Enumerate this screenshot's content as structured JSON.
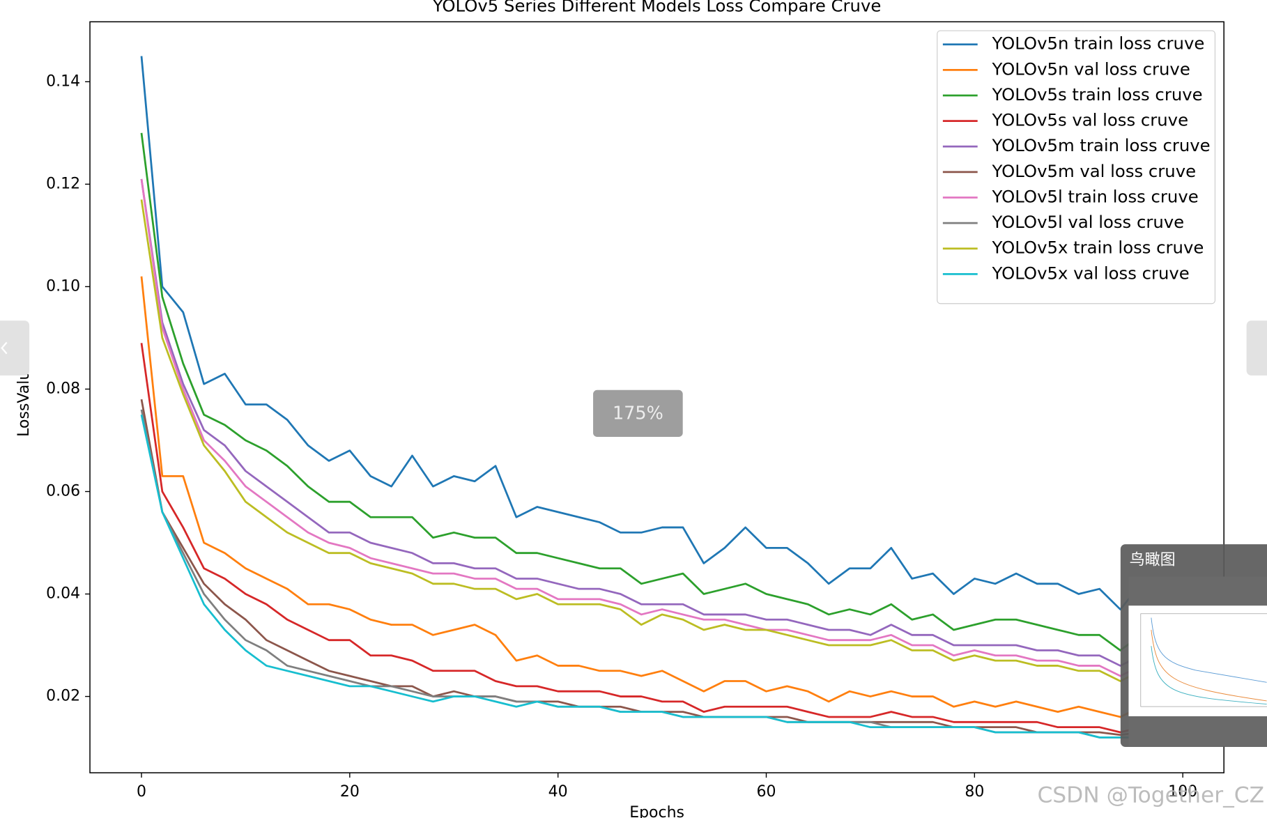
{
  "chart_data": {
    "type": "line",
    "title": "YOLOv5 Series Different Models Loss Compare Cruve",
    "xlabel": "Epochs",
    "ylabel": "LossValue",
    "x": [
      0,
      2,
      4,
      6,
      8,
      10,
      12,
      14,
      16,
      18,
      20,
      22,
      24,
      26,
      28,
      30,
      32,
      34,
      36,
      38,
      40,
      42,
      44,
      46,
      48,
      50,
      52,
      54,
      56,
      58,
      60,
      62,
      64,
      66,
      68,
      70,
      72,
      74,
      76,
      78,
      80,
      82,
      84,
      86,
      88,
      90,
      92,
      94,
      96,
      98,
      99
    ],
    "xlim": [
      -4.95,
      103.95
    ],
    "xticks": [
      0,
      20,
      40,
      60,
      80,
      100
    ],
    "ylim": [
      0.0051,
      0.1517
    ],
    "yticks": [
      0.02,
      0.04,
      0.06,
      0.08,
      {
        "value": 0.1,
        "label": "0.10"
      },
      0.12,
      0.14
    ],
    "legend": "upper right",
    "grid": false,
    "series": [
      {
        "name": "YOLOv5n train loss cruve",
        "color": "#1f77b4",
        "values": [
          0.145,
          0.1,
          0.095,
          0.081,
          0.083,
          0.077,
          0.077,
          0.074,
          0.069,
          0.066,
          0.068,
          0.063,
          0.061,
          0.067,
          0.061,
          0.063,
          0.062,
          0.065,
          0.055,
          0.057,
          0.056,
          0.055,
          0.054,
          0.052,
          0.052,
          0.053,
          0.053,
          0.046,
          0.049,
          0.053,
          0.049,
          0.049,
          0.046,
          0.042,
          0.045,
          0.045,
          0.049,
          0.043,
          0.044,
          0.04,
          0.043,
          0.042,
          0.044,
          0.042,
          0.042,
          0.04,
          0.041,
          0.037,
          0.042,
          0.039,
          0.039
        ]
      },
      {
        "name": "YOLOv5n val loss cruve",
        "color": "#ff7f0e",
        "values": [
          0.102,
          0.063,
          0.063,
          0.05,
          0.048,
          0.045,
          0.043,
          0.041,
          0.038,
          0.038,
          0.037,
          0.035,
          0.034,
          0.034,
          0.032,
          0.033,
          0.034,
          0.032,
          0.027,
          0.028,
          0.026,
          0.026,
          0.025,
          0.025,
          0.024,
          0.025,
          0.023,
          0.021,
          0.023,
          0.023,
          0.021,
          0.022,
          0.021,
          0.019,
          0.021,
          0.02,
          0.021,
          0.02,
          0.02,
          0.018,
          0.019,
          0.018,
          0.019,
          0.018,
          0.017,
          0.018,
          0.017,
          0.016,
          0.018,
          0.017,
          0.017
        ]
      },
      {
        "name": "YOLOv5s train loss cruve",
        "color": "#2ca02c",
        "values": [
          0.13,
          0.098,
          0.085,
          0.075,
          0.073,
          0.07,
          0.068,
          0.065,
          0.061,
          0.058,
          0.058,
          0.055,
          0.055,
          0.055,
          0.051,
          0.052,
          0.051,
          0.051,
          0.048,
          0.048,
          0.047,
          0.046,
          0.045,
          0.045,
          0.042,
          0.043,
          0.044,
          0.04,
          0.041,
          0.042,
          0.04,
          0.039,
          0.038,
          0.036,
          0.037,
          0.036,
          0.038,
          0.035,
          0.036,
          0.033,
          0.034,
          0.035,
          0.035,
          0.034,
          0.033,
          0.032,
          0.032,
          0.029,
          0.032,
          0.031,
          0.031
        ]
      },
      {
        "name": "YOLOv5s val loss cruve",
        "color": "#d62728",
        "values": [
          0.089,
          0.06,
          0.053,
          0.045,
          0.043,
          0.04,
          0.038,
          0.035,
          0.033,
          0.031,
          0.031,
          0.028,
          0.028,
          0.027,
          0.025,
          0.025,
          0.025,
          0.023,
          0.022,
          0.022,
          0.021,
          0.021,
          0.021,
          0.02,
          0.02,
          0.019,
          0.019,
          0.017,
          0.018,
          0.018,
          0.018,
          0.018,
          0.017,
          0.016,
          0.016,
          0.016,
          0.017,
          0.016,
          0.016,
          0.015,
          0.015,
          0.015,
          0.015,
          0.015,
          0.014,
          0.014,
          0.014,
          0.013,
          0.014,
          0.0135,
          0.0135
        ]
      },
      {
        "name": "YOLOv5m train loss cruve",
        "color": "#9467bd",
        "values": [
          0.121,
          0.093,
          0.081,
          0.072,
          0.069,
          0.064,
          0.061,
          0.058,
          0.055,
          0.052,
          0.052,
          0.05,
          0.049,
          0.048,
          0.046,
          0.046,
          0.045,
          0.045,
          0.043,
          0.043,
          0.042,
          0.041,
          0.041,
          0.04,
          0.038,
          0.038,
          0.038,
          0.036,
          0.036,
          0.036,
          0.035,
          0.035,
          0.034,
          0.033,
          0.033,
          0.032,
          0.034,
          0.032,
          0.032,
          0.03,
          0.03,
          0.03,
          0.03,
          0.029,
          0.029,
          0.028,
          0.028,
          0.026,
          0.028,
          0.027,
          0.027
        ]
      },
      {
        "name": "YOLOv5m val loss cruve",
        "color": "#8c564b",
        "values": [
          0.078,
          0.056,
          0.049,
          0.042,
          0.038,
          0.035,
          0.031,
          0.029,
          0.027,
          0.025,
          0.024,
          0.023,
          0.022,
          0.022,
          0.02,
          0.021,
          0.02,
          0.02,
          0.019,
          0.019,
          0.019,
          0.018,
          0.018,
          0.018,
          0.017,
          0.017,
          0.017,
          0.016,
          0.016,
          0.016,
          0.016,
          0.016,
          0.015,
          0.015,
          0.015,
          0.015,
          0.015,
          0.015,
          0.015,
          0.014,
          0.014,
          0.014,
          0.014,
          0.013,
          0.013,
          0.013,
          0.013,
          0.0125,
          0.013,
          0.0125,
          0.0125
        ]
      },
      {
        "name": "YOLOv5l train loss cruve",
        "color": "#e377c2",
        "values": [
          0.121,
          0.092,
          0.08,
          0.07,
          0.066,
          0.061,
          0.058,
          0.055,
          0.052,
          0.05,
          0.049,
          0.047,
          0.046,
          0.045,
          0.044,
          0.044,
          0.043,
          0.043,
          0.041,
          0.041,
          0.039,
          0.039,
          0.039,
          0.038,
          0.036,
          0.037,
          0.036,
          0.035,
          0.035,
          0.034,
          0.033,
          0.033,
          0.032,
          0.031,
          0.031,
          0.031,
          0.032,
          0.03,
          0.03,
          0.028,
          0.029,
          0.028,
          0.028,
          0.027,
          0.027,
          0.026,
          0.026,
          0.024,
          0.026,
          0.025,
          0.025
        ]
      },
      {
        "name": "YOLOv5l val loss cruve",
        "color": "#7f7f7f",
        "values": [
          0.076,
          0.056,
          0.048,
          0.04,
          0.035,
          0.031,
          0.029,
          0.026,
          0.025,
          0.024,
          0.023,
          0.022,
          0.022,
          0.021,
          0.02,
          0.02,
          0.02,
          0.02,
          0.019,
          0.019,
          0.018,
          0.018,
          0.018,
          0.017,
          0.017,
          0.017,
          0.016,
          0.016,
          0.016,
          0.016,
          0.016,
          0.015,
          0.015,
          0.015,
          0.015,
          0.015,
          0.014,
          0.014,
          0.014,
          0.014,
          0.014,
          0.013,
          0.013,
          0.013,
          0.013,
          0.013,
          0.012,
          0.012,
          0.012,
          0.012,
          0.012
        ]
      },
      {
        "name": "YOLOv5x train loss cruve",
        "color": "#bcbd22",
        "values": [
          0.117,
          0.09,
          0.079,
          0.069,
          0.064,
          0.058,
          0.055,
          0.052,
          0.05,
          0.048,
          0.048,
          0.046,
          0.045,
          0.044,
          0.042,
          0.042,
          0.041,
          0.041,
          0.039,
          0.04,
          0.038,
          0.038,
          0.038,
          0.037,
          0.034,
          0.036,
          0.035,
          0.033,
          0.034,
          0.033,
          0.033,
          0.032,
          0.031,
          0.03,
          0.03,
          0.03,
          0.031,
          0.029,
          0.029,
          0.027,
          0.028,
          0.027,
          0.027,
          0.026,
          0.026,
          0.025,
          0.025,
          0.023,
          0.025,
          0.024,
          0.024
        ]
      },
      {
        "name": "YOLOv5x val loss cruve",
        "color": "#17becf",
        "values": [
          0.075,
          0.056,
          0.047,
          0.038,
          0.033,
          0.029,
          0.026,
          0.025,
          0.024,
          0.023,
          0.022,
          0.022,
          0.021,
          0.02,
          0.019,
          0.02,
          0.02,
          0.019,
          0.018,
          0.019,
          0.018,
          0.018,
          0.018,
          0.017,
          0.017,
          0.017,
          0.016,
          0.016,
          0.016,
          0.016,
          0.016,
          0.015,
          0.015,
          0.015,
          0.015,
          0.014,
          0.014,
          0.014,
          0.014,
          0.014,
          0.014,
          0.013,
          0.013,
          0.013,
          0.013,
          0.013,
          0.012,
          0.012,
          0.012,
          0.012,
          0.012
        ]
      }
    ]
  },
  "viewer": {
    "zoom": "175%",
    "overview_title": "鸟瞰图",
    "watermark": "CSDN @Together_CZ"
  }
}
